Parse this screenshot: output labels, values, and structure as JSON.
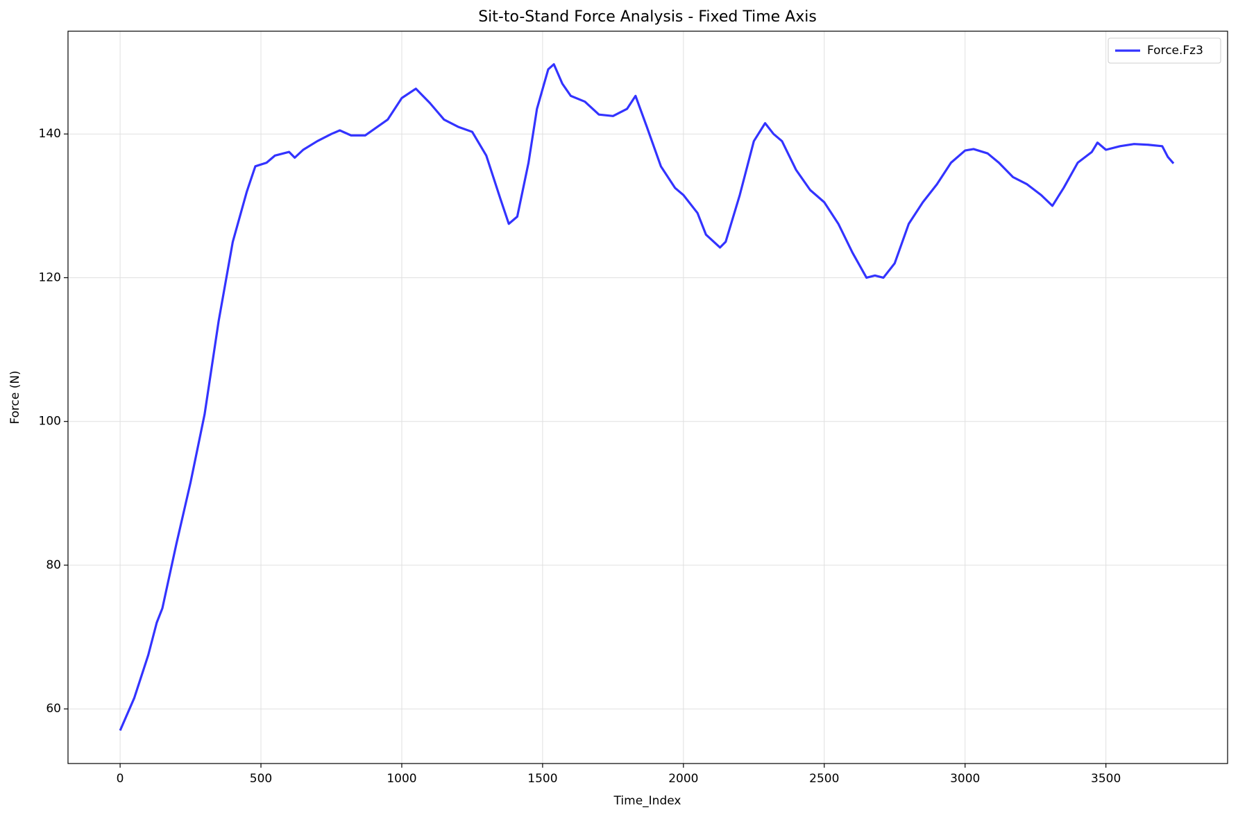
{
  "chart_data": {
    "type": "line",
    "title": "Sit-to-Stand Force Analysis - Fixed Time Axis",
    "x_label": "Time_Index",
    "y_label": "Force (N)",
    "x": [
      0,
      50,
      100,
      130,
      150,
      200,
      250,
      300,
      350,
      400,
      450,
      480,
      520,
      550,
      600,
      620,
      650,
      700,
      750,
      780,
      820,
      870,
      950,
      1000,
      1050,
      1100,
      1150,
      1200,
      1250,
      1300,
      1350,
      1380,
      1410,
      1450,
      1480,
      1520,
      1540,
      1570,
      1600,
      1650,
      1700,
      1750,
      1800,
      1830,
      1870,
      1920,
      1970,
      2000,
      2050,
      2080,
      2130,
      2150,
      2200,
      2250,
      2290,
      2320,
      2350,
      2400,
      2450,
      2500,
      2550,
      2600,
      2650,
      2680,
      2710,
      2750,
      2800,
      2850,
      2900,
      2950,
      3000,
      3030,
      3080,
      3120,
      3170,
      3220,
      3270,
      3310,
      3350,
      3400,
      3450,
      3470,
      3500,
      3550,
      3600,
      3650,
      3700,
      3720,
      3740
    ],
    "series": [
      {
        "name": "Force.Fz3",
        "color": "#3333ff",
        "values": [
          57,
          61.5,
          67.5,
          72,
          74,
          83,
          91.5,
          101,
          114,
          125,
          132,
          135.5,
          136,
          137,
          137.5,
          136.7,
          137.8,
          139,
          140,
          140.5,
          139.8,
          139.8,
          142,
          145,
          146.3,
          144.3,
          142,
          141,
          140.3,
          137,
          131,
          127.5,
          128.5,
          136,
          143.5,
          149,
          149.7,
          147,
          145.3,
          144.5,
          142.7,
          142.5,
          143.5,
          145.3,
          141,
          135.5,
          132.5,
          131.5,
          129,
          126,
          124.2,
          125,
          131.5,
          139,
          141.5,
          140,
          139,
          135,
          132.2,
          130.5,
          127.5,
          123.5,
          120,
          120.3,
          120,
          122,
          127.5,
          130.5,
          133,
          136,
          137.7,
          137.9,
          137.3,
          136,
          134,
          133,
          131.5,
          130,
          132.5,
          136,
          137.5,
          138.8,
          137.8,
          138.3,
          138.6,
          138.5,
          138.3,
          136.8,
          135.9
        ]
      }
    ],
    "xlim": [
      -185,
      3932
    ],
    "ylim": [
      52.4,
      154.3
    ],
    "xticks": [
      0,
      500,
      1000,
      1500,
      2000,
      2500,
      3000,
      3500
    ],
    "yticks": [
      60,
      80,
      100,
      120,
      140
    ],
    "grid": true,
    "legend": "upper right"
  }
}
